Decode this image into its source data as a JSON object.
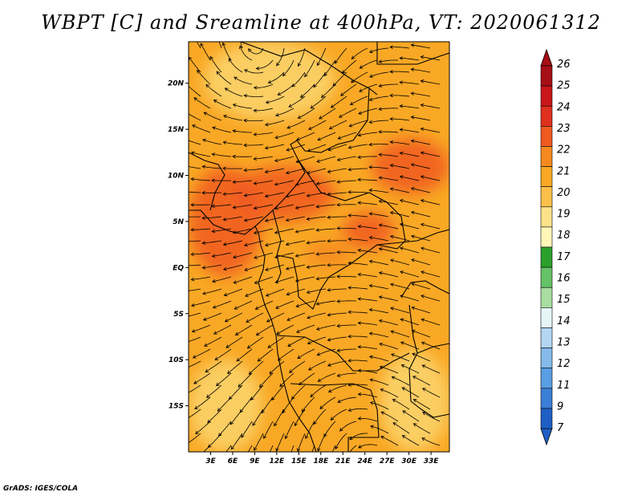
{
  "title": "WBPT [C] and Sreamline at 400hPa, VT: 2020061312",
  "footer": "GrADS: IGES/COLA",
  "map": {
    "lat_range": [
      -20,
      24.5
    ],
    "lon_range": [
      0,
      35.5
    ],
    "lat_ticks": [
      {
        "value": 20,
        "label": "20N"
      },
      {
        "value": 15,
        "label": "15N"
      },
      {
        "value": 10,
        "label": "10N"
      },
      {
        "value": 5,
        "label": "5N"
      },
      {
        "value": 0,
        "label": "EQ"
      },
      {
        "value": -5,
        "label": "5S"
      },
      {
        "value": -10,
        "label": "10S"
      },
      {
        "value": -15,
        "label": "15S"
      }
    ],
    "lon_ticks": [
      {
        "value": 3,
        "label": "3E"
      },
      {
        "value": 6,
        "label": "6E"
      },
      {
        "value": 9,
        "label": "9E"
      },
      {
        "value": 12,
        "label": "12E"
      },
      {
        "value": 15,
        "label": "15E"
      },
      {
        "value": 18,
        "label": "18E"
      },
      {
        "value": 21,
        "label": "21E"
      },
      {
        "value": 24,
        "label": "24E"
      },
      {
        "value": 27,
        "label": "27E"
      },
      {
        "value": 30,
        "label": "30E"
      },
      {
        "value": 33,
        "label": "33E"
      }
    ],
    "field": {
      "variable": "WBPT",
      "units": "C",
      "background_class": "20-21",
      "warm_regions": [
        {
          "name": "west-coast-maximum",
          "lat_range": [
            -1,
            11
          ],
          "lon_range": [
            0,
            10
          ],
          "class": "22-23"
        },
        {
          "name": "central-band",
          "lat_range": [
            5,
            11
          ],
          "lon_range": [
            6,
            20
          ],
          "class": "22-23"
        },
        {
          "name": "northeast-maximum",
          "lat_range": [
            8,
            14
          ],
          "lon_range": [
            25,
            35.5
          ],
          "class": "22-23"
        },
        {
          "name": "east-patch",
          "lat_range": [
            2,
            6
          ],
          "lon_range": [
            21,
            28
          ],
          "class": "22-23"
        },
        {
          "name": "equatorial-patch",
          "lat_range": [
            0,
            3
          ],
          "lon_range": [
            16,
            22
          ],
          "class": "21-22"
        }
      ],
      "cool_regions": [
        {
          "name": "north-cool-area",
          "lat_range": [
            16,
            24.5
          ],
          "lon_range": [
            2,
            20
          ],
          "class": "19-20"
        },
        {
          "name": "southwest-cool-area",
          "lat_range": [
            -20,
            -10
          ],
          "lon_range": [
            0,
            10
          ],
          "class": "19-20"
        },
        {
          "name": "southeast-cool-area",
          "lat_range": [
            -20,
            -9
          ],
          "lon_range": [
            26,
            35.5
          ],
          "class": "19-20"
        }
      ]
    },
    "streamline_flow": "mostly easterly; anticyclonic turning in the north, cyclonic curvature in the south"
  },
  "colorbar": {
    "labels": [
      "26",
      "25",
      "24",
      "23",
      "22",
      "21",
      "20",
      "19",
      "18",
      "17",
      "16",
      "15",
      "14",
      "13",
      "12",
      "11",
      "9",
      "7"
    ],
    "colors": [
      "#a50f15",
      "#c8161a",
      "#e0301e",
      "#f05a20",
      "#f68a1f",
      "#f9a825",
      "#fbc04a",
      "#fde28a",
      "#fff6b8",
      "#2ca02c",
      "#66c266",
      "#a8dea0",
      "#e6f5f8",
      "#b3d6f2",
      "#85baeb",
      "#5a9ee3",
      "#3b7fd6",
      "#1f5fc4"
    ]
  }
}
